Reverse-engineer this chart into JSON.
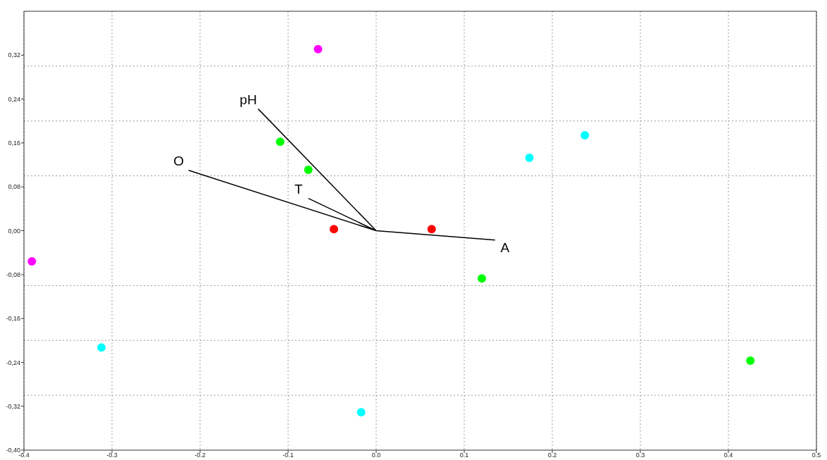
{
  "chart_data": {
    "type": "scatter",
    "xlim": [
      -0.4,
      0.5
    ],
    "ylim": [
      -0.4,
      0.4
    ],
    "xticks": [
      {
        "value": -0.4,
        "label": "-0.4"
      },
      {
        "value": -0.3,
        "label": "-0.3"
      },
      {
        "value": -0.2,
        "label": "-0.2"
      },
      {
        "value": -0.1,
        "label": "-0.1"
      },
      {
        "value": 0,
        "label": "0.0"
      },
      {
        "value": 0.1,
        "label": "0.1"
      },
      {
        "value": 0.2,
        "label": "0.2"
      },
      {
        "value": 0.3,
        "label": "0.3"
      },
      {
        "value": 0.4,
        "label": "0.4"
      },
      {
        "value": 0.5,
        "label": "0.5"
      }
    ],
    "yticks": [
      {
        "value": -0.4,
        "label": "-0,40"
      },
      {
        "value": -0.32,
        "label": "-0,32"
      },
      {
        "value": -0.24,
        "label": "-0,24"
      },
      {
        "value": -0.16,
        "label": "-0,16"
      },
      {
        "value": -0.08,
        "label": "-0,08"
      },
      {
        "value": 0,
        "label": "0,00"
      },
      {
        "value": 0.08,
        "label": "0,08"
      },
      {
        "value": 0.16,
        "label": "0,16"
      },
      {
        "value": 0.24,
        "label": "0,24"
      },
      {
        "value": 0.32,
        "label": "0,32"
      },
      {
        "value": -0.3,
        "label": null
      },
      {
        "value": -0.2,
        "label": null
      },
      {
        "value": -0.1,
        "label": null
      },
      {
        "value": 0.1,
        "label": null
      },
      {
        "value": 0.2,
        "label": null
      },
      {
        "value": 0.3,
        "label": null
      }
    ],
    "grid": true,
    "legend": false,
    "marker": "circle",
    "series": [
      {
        "color": "#ff00ff",
        "x": [
          -0.066,
          -0.391
        ],
        "values": [
          0.331,
          -0.056
        ]
      },
      {
        "color": "#00ff00",
        "x": [
          -0.109,
          -0.077,
          0.12,
          0.425
        ],
        "values": [
          0.162,
          0.111,
          -0.087,
          -0.237
        ]
      },
      {
        "color": "#ff0000",
        "x": [
          -0.048,
          0.063
        ],
        "values": [
          0.003,
          0.003
        ]
      },
      {
        "color": "#00ffff",
        "x": [
          0.174,
          0.237,
          -0.312,
          -0.017
        ],
        "values": [
          0.133,
          0.174,
          -0.213,
          -0.331
        ]
      },
      {
        "type": "line",
        "color": "#000000",
        "marker": "none",
        "x": [
          0,
          -0.134,
          null,
          0,
          -0.213,
          null,
          0,
          -0.077,
          null,
          0,
          0.135
        ],
        "values": [
          0,
          0.222,
          null,
          0,
          0.11,
          null,
          0,
          0.059,
          null,
          0,
          -0.017
        ]
      }
    ],
    "annotations": [
      {
        "text": "pH",
        "x": -0.134,
        "y": 0.222
      },
      {
        "text": "O",
        "x": -0.213,
        "y": 0.11
      },
      {
        "text": "T",
        "x": -0.077,
        "y": 0.059
      },
      {
        "text": "A",
        "x": 0.135,
        "y": -0.017
      }
    ]
  }
}
